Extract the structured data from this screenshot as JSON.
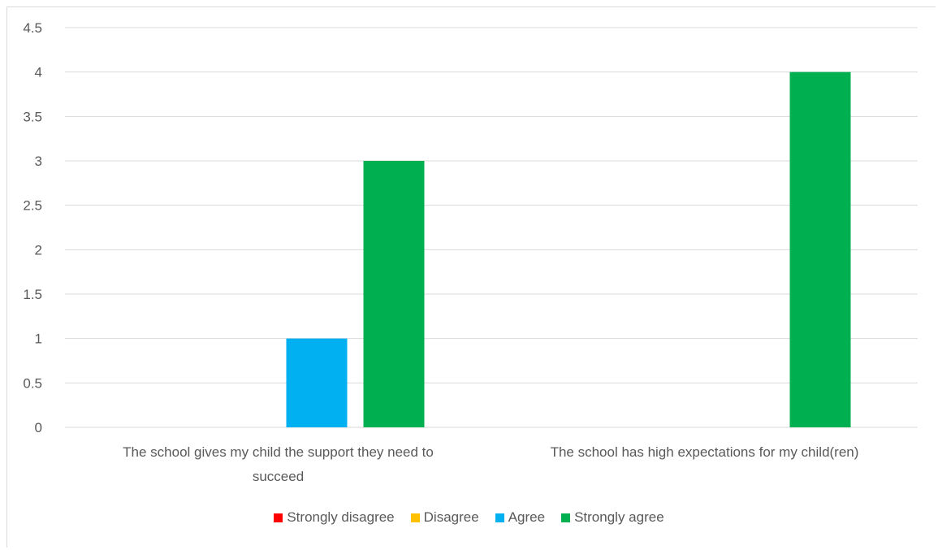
{
  "chart_data": {
    "type": "bar",
    "categories": [
      [
        "The school gives my child the support they need to",
        "succeed"
      ],
      [
        "The school has high expectations for my child(ren)"
      ]
    ],
    "series": [
      {
        "name": "Strongly disagree",
        "color": "#ff0000",
        "values": [
          0,
          0
        ]
      },
      {
        "name": "Disagree",
        "color": "#ffc000",
        "values": [
          0,
          0
        ]
      },
      {
        "name": "Agree",
        "color": "#00b0f0",
        "values": [
          1,
          0
        ]
      },
      {
        "name": "Strongly agree",
        "color": "#00b050",
        "values": [
          3,
          4
        ]
      }
    ],
    "ylim": [
      0,
      4.5
    ],
    "yticks": [
      "0",
      "0.5",
      "1",
      "1.5",
      "2",
      "2.5",
      "3",
      "3.5",
      "4",
      "4.5"
    ],
    "grid": true,
    "legend_position": "bottom"
  }
}
